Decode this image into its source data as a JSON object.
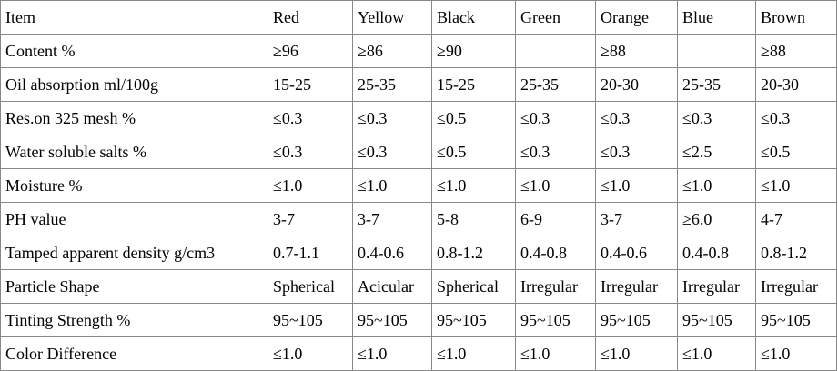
{
  "table": {
    "header": [
      "Item",
      "Red",
      "Yellow",
      "Black",
      "Green",
      "Orange",
      "Blue",
      "Brown"
    ],
    "rows": [
      [
        "Content %",
        "≥96",
        "≥86",
        "≥90",
        null,
        "≥88",
        null,
        "≥88"
      ],
      [
        "Oil absorption ml/100g",
        "15-25",
        "25-35",
        "15-25",
        "25-35",
        "20-30",
        "25-35",
        "20-30"
      ],
      [
        "Res.on 325 mesh %",
        "≤0.3",
        "≤0.3",
        "≤0.5",
        "≤0.3",
        "≤0.3",
        "≤0.3",
        "≤0.3"
      ],
      [
        "Water soluble salts %",
        "≤0.3",
        "≤0.3",
        "≤0.5",
        "≤0.3",
        "≤0.3",
        "≤2.5",
        "≤0.5"
      ],
      [
        "Moisture %",
        "≤1.0",
        "≤1.0",
        "≤1.0",
        "≤1.0",
        "≤1.0",
        "≤1.0",
        "≤1.0"
      ],
      [
        "PH value",
        "3-7",
        "3-7",
        "5-8",
        "6-9",
        "3-7",
        "≥6.0",
        "4-7"
      ],
      [
        "Tamped apparent density g/cm3",
        "0.7-1.1",
        "0.4-0.6",
        "0.8-1.2",
        "0.4-0.8",
        "0.4-0.6",
        "0.4-0.8",
        "0.8-1.2"
      ],
      [
        "Particle Shape",
        "Spherical",
        "Acicular",
        "Spherical",
        "Irregular",
        "Irregular",
        "Irregular",
        "Irregular"
      ],
      [
        "Tinting Strength %",
        "95~105",
        "95~105",
        "95~105",
        "95~105",
        "95~105",
        "95~105",
        "95~105"
      ],
      [
        "Color Difference",
        "≤1.0",
        "≤1.0",
        "≤1.0",
        "≤1.0",
        "≤1.0",
        "≤1.0",
        "≤1.0"
      ]
    ]
  }
}
